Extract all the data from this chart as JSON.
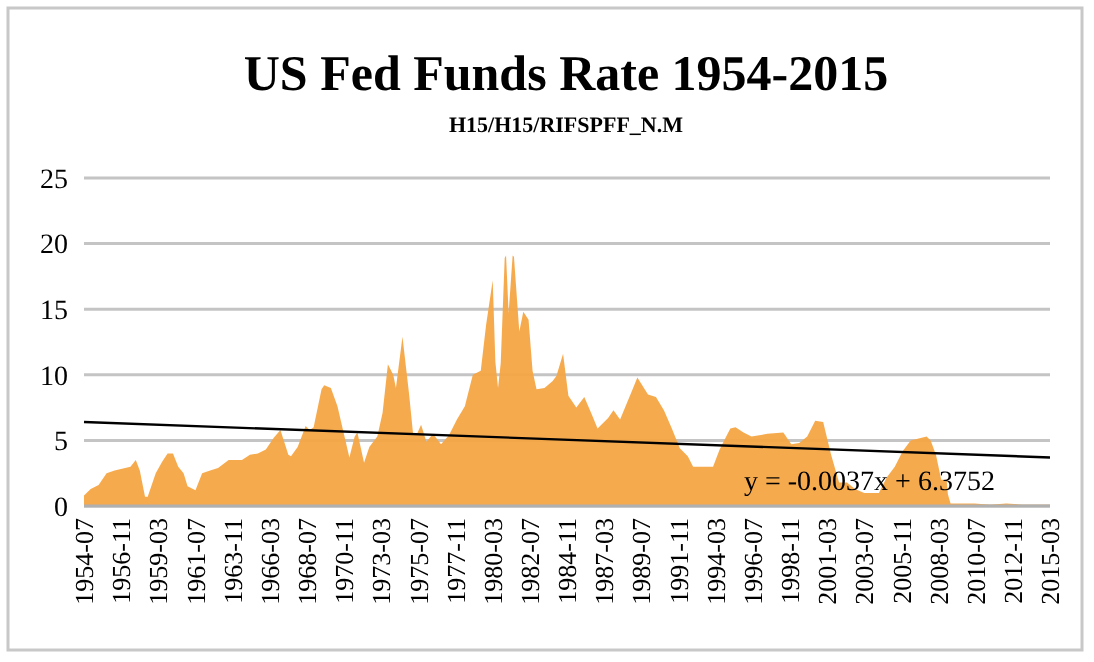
{
  "chart_data": {
    "type": "area",
    "title": "US Fed Funds Rate 1954-2015",
    "subtitle": "H15/H15/RIFSPFF_N.M",
    "annotations": [
      "y = -0.0037x + 6.3752"
    ],
    "ylim": [
      0,
      25
    ],
    "yticks": [
      0,
      5,
      10,
      15,
      20,
      25
    ],
    "grid": "y",
    "xlim": [
      "1954-07",
      "2015-03"
    ],
    "xticks": [
      "1954-07",
      "1956-11",
      "1959-03",
      "1961-07",
      "1963-11",
      "1966-03",
      "1968-07",
      "1970-11",
      "1973-03",
      "1975-07",
      "1977-11",
      "1980-03",
      "1982-07",
      "1984-11",
      "1987-03",
      "1989-07",
      "1991-11",
      "1994-03",
      "1996-07",
      "1998-11",
      "2001-03",
      "2003-07",
      "2005-11",
      "2008-03",
      "2010-07",
      "2012-11",
      "2015-03"
    ],
    "series": [
      {
        "color": "#f6a544",
        "x": [
          "1954-07",
          "1954-12",
          "1955-06",
          "1955-12",
          "1956-06",
          "1957-06",
          "1957-10",
          "1958-01",
          "1958-05",
          "1958-07",
          "1959-01",
          "1959-06",
          "1959-10",
          "1960-02",
          "1960-06",
          "1960-10",
          "1961-01",
          "1961-07",
          "1961-12",
          "1962-06",
          "1962-12",
          "1963-08",
          "1964-06",
          "1964-12",
          "1965-06",
          "1965-12",
          "1966-06",
          "1966-11",
          "1967-05",
          "1967-07",
          "1967-12",
          "1968-06",
          "1968-09",
          "1968-12",
          "1969-06",
          "1969-08",
          "1970-01",
          "1970-06",
          "1970-12",
          "1971-03",
          "1971-07",
          "1971-09",
          "1972-02",
          "1972-06",
          "1972-12",
          "1973-04",
          "1973-08",
          "1973-12",
          "1974-02",
          "1974-07",
          "1974-12",
          "1975-03",
          "1975-06",
          "1975-09",
          "1976-01",
          "1976-06",
          "1976-12",
          "1977-06",
          "1977-12",
          "1978-06",
          "1978-12",
          "1979-06",
          "1979-10",
          "1980-03",
          "1980-05",
          "1980-07",
          "1980-09",
          "1980-12",
          "1981-01",
          "1981-03",
          "1981-06",
          "1981-07",
          "1981-11",
          "1982-02",
          "1982-06",
          "1982-09",
          "1982-12",
          "1983-06",
          "1983-12",
          "1984-03",
          "1984-08",
          "1984-12",
          "1985-06",
          "1985-12",
          "1986-06",
          "1986-10",
          "1987-06",
          "1987-10",
          "1988-03",
          "1988-12",
          "1989-04",
          "1989-12",
          "1990-06",
          "1990-12",
          "1991-06",
          "1991-12",
          "1992-06",
          "1992-10",
          "1993-06",
          "1994-01",
          "1994-06",
          "1994-12",
          "1995-02",
          "1995-06",
          "1995-12",
          "1996-06",
          "1997-06",
          "1998-06",
          "1998-12",
          "1999-06",
          "1999-12",
          "2000-06",
          "2000-12",
          "2001-06",
          "2001-12",
          "2002-06",
          "2002-12",
          "2003-07",
          "2004-06",
          "2004-12",
          "2005-06",
          "2005-12",
          "2006-06",
          "2007-06",
          "2007-09",
          "2008-01",
          "2008-05",
          "2008-09",
          "2008-10",
          "2008-12",
          "2009-06",
          "2010-06",
          "2011-06",
          "2012-06",
          "2013-06",
          "2014-06",
          "2015-03"
        ],
        "values": [
          0.8,
          1.3,
          1.6,
          2.5,
          2.7,
          3.0,
          3.5,
          2.7,
          0.7,
          0.7,
          2.5,
          3.4,
          4.0,
          4.0,
          3.0,
          2.5,
          1.5,
          1.2,
          2.5,
          2.7,
          2.9,
          3.5,
          3.5,
          3.9,
          4.0,
          4.3,
          5.2,
          5.8,
          3.9,
          3.8,
          4.5,
          6.1,
          5.8,
          6.0,
          8.9,
          9.2,
          9.0,
          7.6,
          5.0,
          3.7,
          5.3,
          5.6,
          3.3,
          4.5,
          5.3,
          7.1,
          10.8,
          10.0,
          9.0,
          12.9,
          8.5,
          5.5,
          5.5,
          6.2,
          4.9,
          5.5,
          4.7,
          5.4,
          6.6,
          7.6,
          10.0,
          10.3,
          13.8,
          17.2,
          11.0,
          9.0,
          10.9,
          18.9,
          19.1,
          14.7,
          19.1,
          19.0,
          13.3,
          14.8,
          14.2,
          10.3,
          8.9,
          9.0,
          9.5,
          9.9,
          11.6,
          8.4,
          7.5,
          8.3,
          6.9,
          5.9,
          6.7,
          7.3,
          6.6,
          8.8,
          9.8,
          8.5,
          8.3,
          7.3,
          5.9,
          4.4,
          3.8,
          3.0,
          3.0,
          3.0,
          4.3,
          5.5,
          5.9,
          6.0,
          5.6,
          5.3,
          5.5,
          5.6,
          4.7,
          4.8,
          5.3,
          6.5,
          6.4,
          3.9,
          1.8,
          1.8,
          1.3,
          1.0,
          1.0,
          2.2,
          3.0,
          4.2,
          5.0,
          5.3,
          5.0,
          3.9,
          2.0,
          2.0,
          0.9,
          0.2,
          0.2,
          0.2,
          0.1,
          0.2,
          0.1,
          0.1,
          0.1
        ]
      },
      {
        "type": "line",
        "color": "#000000",
        "x": [
          "1954-07",
          "2015-03"
        ],
        "values": [
          6.4,
          3.7
        ]
      }
    ]
  }
}
